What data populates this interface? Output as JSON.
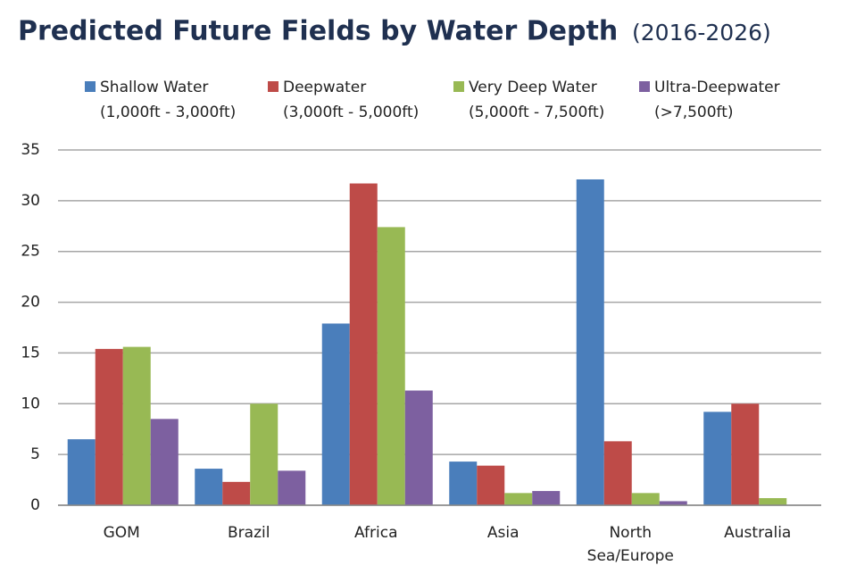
{
  "chart_data": {
    "type": "bar",
    "title": "Predicted Future Fields by Water Depth",
    "subtitle": "(2016-2026)",
    "categories": [
      "GOM",
      "Brazil",
      "Africa",
      "Asia",
      "North Sea/Europe",
      "Australia"
    ],
    "series": [
      {
        "name": "Shallow Water",
        "range": "(1,000ft - 3,000ft)",
        "color": "#4a7ebb",
        "values": [
          6.5,
          3.6,
          17.9,
          4.3,
          32.1,
          9.2
        ]
      },
      {
        "name": "Deepwater",
        "range": "(3,000ft - 5,000ft)",
        "color": "#be4b48",
        "values": [
          15.4,
          2.3,
          31.7,
          3.9,
          6.3,
          10
        ]
      },
      {
        "name": "Very Deep Water",
        "range": "(5,000ft - 7,500ft)",
        "color": "#98b954",
        "values": [
          15.6,
          10,
          27.4,
          1.2,
          1.2,
          0.7
        ]
      },
      {
        "name": "Ultra-Deepwater",
        "range": "(>7,500ft)",
        "color": "#7d60a0",
        "values": [
          8.5,
          3.4,
          11.3,
          1.4,
          0.4,
          0
        ]
      }
    ],
    "ylim": [
      0,
      35
    ],
    "yticks": [
      0,
      5,
      10,
      15,
      20,
      25,
      30,
      35
    ],
    "grid": true
  }
}
